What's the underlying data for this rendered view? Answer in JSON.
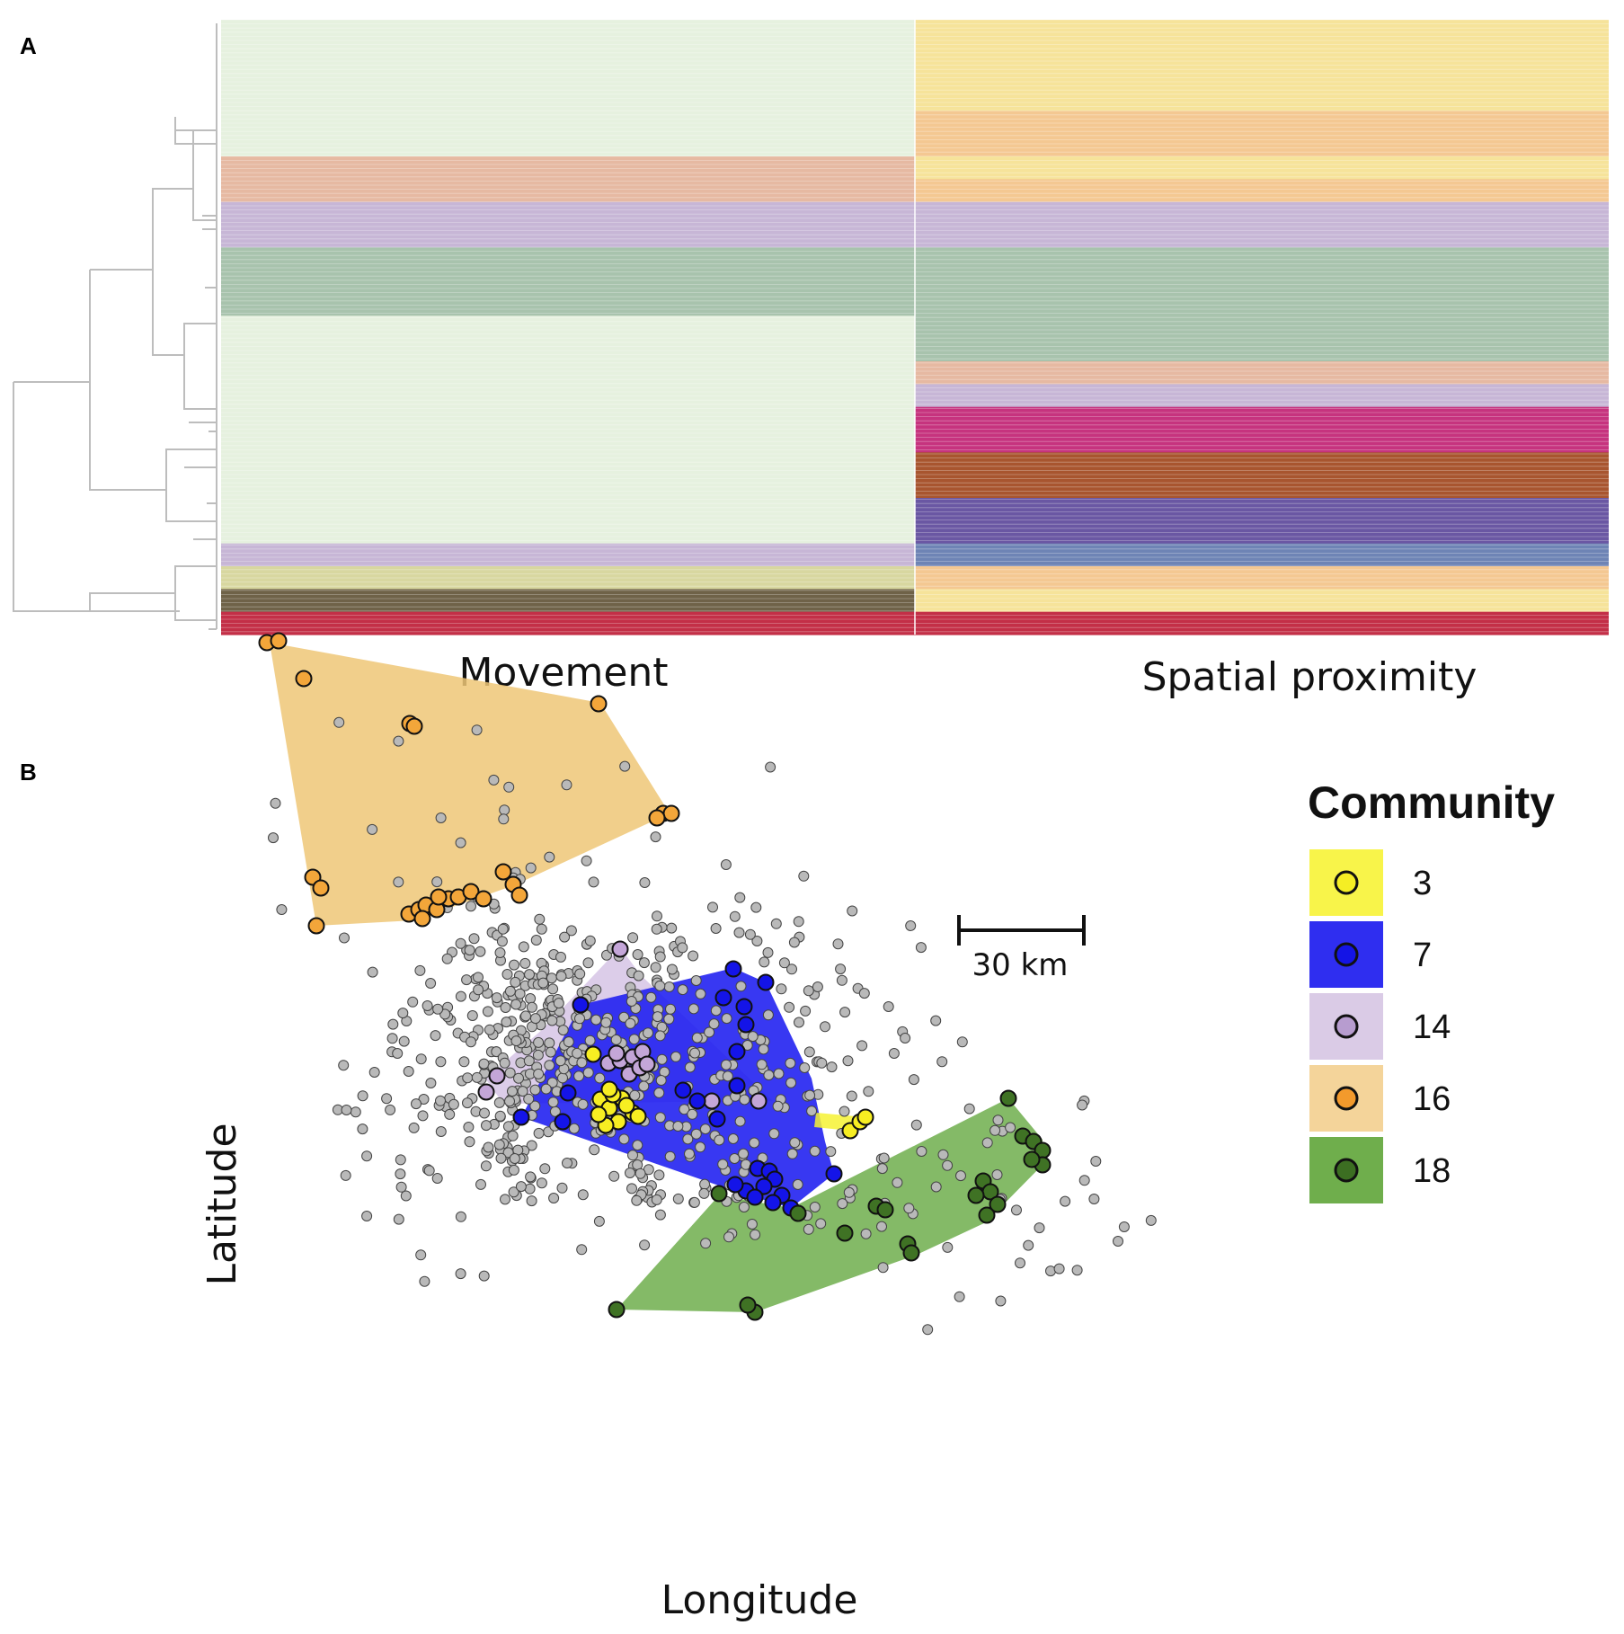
{
  "panels": {
    "a_label": "A",
    "b_label": "B"
  },
  "chart_data": [
    {
      "type": "heatmap",
      "title": "",
      "columns": [
        "Movement",
        "Spatial proximity"
      ],
      "row_count": 27,
      "dendrogram": true,
      "palette": {
        "lg": "#e6f1df",
        "ye": "#f6e39a",
        "or": "#f4c892",
        "pe": "#e6b9a2",
        "la": "#c7b6d6",
        "gr": "#a8c3ad",
        "ol": "#d8d7a0",
        "bl": "#6e84b5",
        "pu": "#6a57a3",
        "ma": "#c6337e",
        "rs": "#a8552f",
        "cr": "#c32f47",
        "bg": "#6f6248"
      },
      "rows": [
        [
          "lg",
          "ye"
        ],
        [
          "lg",
          "ye"
        ],
        [
          "lg",
          "ye"
        ],
        [
          "lg",
          "ye"
        ],
        [
          "lg",
          "or"
        ],
        [
          "lg",
          "or"
        ],
        [
          "pe",
          "ye"
        ],
        [
          "pe",
          "or"
        ],
        [
          "la",
          "la"
        ],
        [
          "la",
          "la"
        ],
        [
          "gr",
          "gr"
        ],
        [
          "gr",
          "gr"
        ],
        [
          "gr",
          "gr"
        ],
        [
          "lg",
          "gr"
        ],
        [
          "lg",
          "gr"
        ],
        [
          "lg",
          "pe"
        ],
        [
          "lg",
          "la"
        ],
        [
          "lg",
          "ma"
        ],
        [
          "lg",
          "ma"
        ],
        [
          "lg",
          "rs"
        ],
        [
          "lg",
          "rs"
        ],
        [
          "lg",
          "pu"
        ],
        [
          "lg",
          "pu"
        ],
        [
          "la",
          "bl"
        ],
        [
          "ol",
          "or"
        ],
        [
          "bg",
          "ye"
        ],
        [
          "cr",
          "cr"
        ]
      ]
    },
    {
      "type": "scatter",
      "title": "",
      "xlabel": "Longitude",
      "ylabel": "Latitude",
      "legend": {
        "title": "Community",
        "position": "right",
        "items": [
          {
            "label": "3",
            "fill": "#f8f44a",
            "marker": "#f5ee24"
          },
          {
            "label": "7",
            "fill": "#2f2ef0",
            "marker": "#1414e6"
          },
          {
            "label": "14",
            "fill": "#dacbe6",
            "marker": "#b79ccf"
          },
          {
            "label": "16",
            "fill": "#f4d49a",
            "marker": "#f39a2c"
          },
          {
            "label": "18",
            "fill": "#6fae4c",
            "marker": "#3c6e22"
          }
        ]
      },
      "scale_bar": {
        "label": "30 km"
      },
      "non_member_color": "#b9b9b9",
      "communities": [
        {
          "id": "16",
          "hull_fill": "#efc777",
          "point_fill": "#f3a63a",
          "hull": [
            [
              300,
              715
            ],
            [
              668,
              782
            ],
            [
              745,
              905
            ],
            [
              572,
              985
            ],
            [
              461,
              1024
            ],
            [
              352,
              1030
            ]
          ],
          "points": [
            [
              297,
              715
            ],
            [
              310,
              713
            ],
            [
              338,
              755
            ],
            [
              456,
              805
            ],
            [
              461,
              808
            ],
            [
              666,
              783
            ],
            [
              738,
              905
            ],
            [
              747,
              905
            ],
            [
              731,
              910
            ],
            [
              348,
              976
            ],
            [
              357,
              988
            ],
            [
              352,
              1030
            ],
            [
              455,
              1017
            ],
            [
              466,
              1012
            ],
            [
              474,
              1007
            ],
            [
              486,
              1012
            ],
            [
              499,
              1000
            ],
            [
              510,
              998
            ],
            [
              524,
              992
            ],
            [
              538,
              1000
            ],
            [
              560,
              970
            ],
            [
              571,
              984
            ],
            [
              578,
              996
            ],
            [
              488,
              998
            ],
            [
              470,
              1022
            ]
          ]
        },
        {
          "id": "14",
          "hull_fill": "#d6c4e5",
          "point_fill": "#c4a6d8",
          "hull": [
            [
              690,
              1054
            ],
            [
              713,
              1085
            ],
            [
              860,
              1225
            ],
            [
              560,
              1228
            ],
            [
              540,
              1200
            ],
            [
              604,
              1145
            ]
          ],
          "points": [
            [
              690,
              1056
            ],
            [
              553,
              1197
            ],
            [
              541,
              1215
            ],
            [
              677,
              1183
            ],
            [
              690,
              1180
            ],
            [
              704,
              1176
            ],
            [
              715,
              1170
            ],
            [
              700,
              1195
            ],
            [
              712,
              1188
            ],
            [
              720,
              1184
            ],
            [
              686,
              1172
            ],
            [
              792,
              1225
            ],
            [
              844,
              1225
            ]
          ]
        },
        {
          "id": "7",
          "hull_fill": "#1c1cf0",
          "point_fill": "#1414e8",
          "hull": [
            [
              646,
              1118
            ],
            [
              816,
              1077
            ],
            [
              852,
              1093
            ],
            [
              903,
              1200
            ],
            [
              918,
              1270
            ],
            [
              928,
              1306
            ],
            [
              880,
              1344
            ],
            [
              820,
              1326
            ],
            [
              580,
              1243
            ]
          ],
          "points": [
            [
              646,
              1118
            ],
            [
              816,
              1078
            ],
            [
              852,
              1093
            ],
            [
              828,
              1120
            ],
            [
              830,
              1140
            ],
            [
              805,
              1110
            ],
            [
              820,
              1170
            ],
            [
              760,
              1213
            ],
            [
              776,
              1225
            ],
            [
              798,
              1245
            ],
            [
              820,
              1208
            ],
            [
              632,
              1216
            ],
            [
              626,
              1248
            ],
            [
              580,
              1243
            ],
            [
              843,
              1300
            ],
            [
              856,
              1303
            ],
            [
              862,
              1312
            ],
            [
              850,
              1320
            ],
            [
              830,
              1325
            ],
            [
              818,
              1318
            ],
            [
              880,
              1344
            ],
            [
              928,
              1306
            ],
            [
              870,
              1330
            ],
            [
              860,
              1338
            ],
            [
              840,
              1332
            ]
          ]
        },
        {
          "id": "3",
          "hull_fill": "#f6f233",
          "point_fill": "#f7ee22",
          "hull": [
            [
              908,
              1238
            ],
            [
              963,
              1243
            ],
            [
              946,
              1258
            ],
            [
              906,
              1254
            ]
          ],
          "points": [
            [
              660,
              1173
            ],
            [
              668,
              1223
            ],
            [
              678,
              1233
            ],
            [
              692,
              1222
            ],
            [
              704,
              1238
            ],
            [
              688,
              1248
            ],
            [
              674,
              1252
            ],
            [
              682,
              1218
            ],
            [
              697,
              1230
            ],
            [
              710,
              1242
            ],
            [
              666,
              1240
            ],
            [
              678,
              1212
            ],
            [
              946,
              1258
            ],
            [
              957,
              1248
            ],
            [
              963,
              1243
            ]
          ]
        },
        {
          "id": "18",
          "hull_fill": "#6fae4c",
          "point_fill": "#3f7224",
          "hull": [
            [
              1122,
              1222
            ],
            [
              1160,
              1268
            ],
            [
              1160,
              1296
            ],
            [
              1097,
              1360
            ],
            [
              1020,
              1396
            ],
            [
              840,
              1460
            ],
            [
              686,
              1457
            ],
            [
              800,
              1330
            ],
            [
              880,
              1344
            ]
          ],
          "points": [
            [
              1122,
              1222
            ],
            [
              1138,
              1264
            ],
            [
              1150,
              1270
            ],
            [
              1160,
              1280
            ],
            [
              1160,
              1296
            ],
            [
              1148,
              1290
            ],
            [
              1094,
              1314
            ],
            [
              1102,
              1326
            ],
            [
              1110,
              1340
            ],
            [
              1098,
              1352
            ],
            [
              1086,
              1330
            ],
            [
              975,
              1342
            ],
            [
              985,
              1346
            ],
            [
              940,
              1372
            ],
            [
              1010,
              1384
            ],
            [
              1014,
              1394
            ],
            [
              840,
              1460
            ],
            [
              686,
              1457
            ],
            [
              800,
              1328
            ],
            [
              888,
              1350
            ],
            [
              832,
              1452
            ]
          ]
        }
      ]
    }
  ]
}
